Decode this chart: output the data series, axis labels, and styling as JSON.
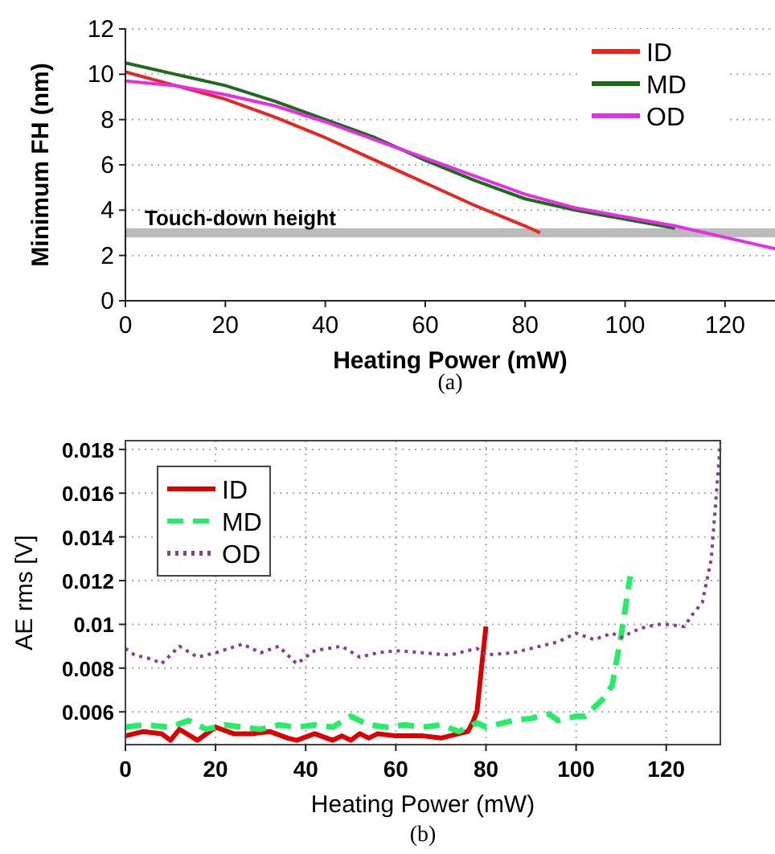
{
  "chart_data": [
    {
      "type": "line",
      "xlabel": "Heating Power (mW)",
      "ylabel": "Minimum FH (nm)",
      "xlim": [
        0,
        130
      ],
      "ylim": [
        0,
        12
      ],
      "xticks": [
        0,
        20,
        40,
        60,
        80,
        100,
        120
      ],
      "yticks": [
        0,
        2,
        4,
        6,
        8,
        10,
        12
      ],
      "grid": "y",
      "legend": "top right",
      "line_style": "solid",
      "annotations": [
        "(a)"
      ],
      "bands": [
        {
          "axis": "y",
          "from": 2.8,
          "to": 3.2,
          "label": "Touch-down height",
          "color": "#bbbbbb"
        }
      ],
      "series": [
        {
          "name": "ID",
          "color": "#e8251f",
          "x": [
            0,
            10,
            20,
            30,
            40,
            50,
            60,
            70,
            80,
            83
          ],
          "values": [
            10.1,
            9.5,
            8.9,
            8.1,
            7.2,
            6.2,
            5.2,
            4.2,
            3.3,
            3.0
          ]
        },
        {
          "name": "MD",
          "color": "#1a6b1a",
          "x": [
            0,
            10,
            20,
            30,
            40,
            50,
            60,
            70,
            80,
            90,
            100,
            110
          ],
          "values": [
            10.5,
            10.0,
            9.5,
            8.8,
            8.0,
            7.2,
            6.2,
            5.3,
            4.5,
            4.0,
            3.6,
            3.2
          ]
        },
        {
          "name": "OD",
          "color": "#e62ee6",
          "x": [
            0,
            10,
            20,
            30,
            40,
            50,
            60,
            70,
            80,
            90,
            100,
            110,
            120,
            130
          ],
          "values": [
            9.7,
            9.5,
            9.1,
            8.6,
            7.9,
            7.1,
            6.3,
            5.5,
            4.7,
            4.1,
            3.7,
            3.3,
            2.8,
            2.3
          ]
        }
      ]
    },
    {
      "type": "line",
      "xlabel": "Heating Power (mW)",
      "ylabel": "AE rms [V]",
      "xlim": [
        0,
        132
      ],
      "ylim": [
        0.0045,
        0.0184
      ],
      "xticks": [
        0,
        20,
        40,
        60,
        80,
        100,
        120
      ],
      "yticks": [
        0.006,
        0.008,
        0.01,
        0.012,
        0.014,
        0.016,
        0.018
      ],
      "grid": true,
      "legend": "top left",
      "annotations": [
        "(b)"
      ],
      "series": [
        {
          "name": "ID",
          "color": "#dd0000",
          "line_style": "solid",
          "x": [
            0,
            4,
            8,
            10,
            12,
            16,
            20,
            24,
            28,
            32,
            36,
            38,
            42,
            46,
            48,
            50,
            52,
            54,
            56,
            60,
            66,
            70,
            74,
            76,
            77,
            78,
            79,
            80
          ],
          "values": [
            0.0049,
            0.0051,
            0.005,
            0.0047,
            0.0052,
            0.0047,
            0.0053,
            0.005,
            0.005,
            0.0051,
            0.0048,
            0.0047,
            0.005,
            0.0047,
            0.0049,
            0.0047,
            0.005,
            0.0048,
            0.005,
            0.0049,
            0.0049,
            0.0048,
            0.005,
            0.0051,
            0.0055,
            0.006,
            0.008,
            0.0099
          ]
        },
        {
          "name": "MD",
          "color": "#22ee66",
          "line_style": "dashed",
          "x": [
            0,
            4,
            10,
            14,
            18,
            22,
            26,
            30,
            34,
            38,
            42,
            46,
            50,
            54,
            58,
            62,
            66,
            70,
            74,
            78,
            80,
            86,
            90,
            94,
            96,
            100,
            102,
            106,
            108,
            110,
            112
          ],
          "values": [
            0.0053,
            0.0054,
            0.0053,
            0.0056,
            0.0052,
            0.0054,
            0.0053,
            0.0052,
            0.0054,
            0.0053,
            0.0054,
            0.0053,
            0.0058,
            0.0054,
            0.0053,
            0.0054,
            0.0053,
            0.0054,
            0.0051,
            0.0055,
            0.0053,
            0.0056,
            0.0057,
            0.0059,
            0.0056,
            0.0058,
            0.0058,
            0.0066,
            0.0072,
            0.0095,
            0.0122
          ]
        },
        {
          "name": "OD",
          "color": "#8a3a9a",
          "line_style": "dotted",
          "x": [
            0,
            2,
            6,
            8,
            12,
            16,
            20,
            26,
            30,
            34,
            38,
            42,
            48,
            52,
            56,
            60,
            66,
            72,
            78,
            80,
            86,
            90,
            96,
            100,
            104,
            108,
            110,
            114,
            118,
            120,
            124,
            126,
            128,
            130,
            132
          ],
          "values": [
            0.0089,
            0.0086,
            0.0084,
            0.0082,
            0.009,
            0.0085,
            0.0087,
            0.0091,
            0.0087,
            0.009,
            0.0082,
            0.0088,
            0.009,
            0.0085,
            0.0087,
            0.0088,
            0.0087,
            0.0086,
            0.0089,
            0.0086,
            0.0087,
            0.0089,
            0.0092,
            0.0096,
            0.0093,
            0.0096,
            0.0094,
            0.0098,
            0.01,
            0.01,
            0.0099,
            0.0105,
            0.011,
            0.013,
            0.0183
          ]
        }
      ]
    }
  ]
}
